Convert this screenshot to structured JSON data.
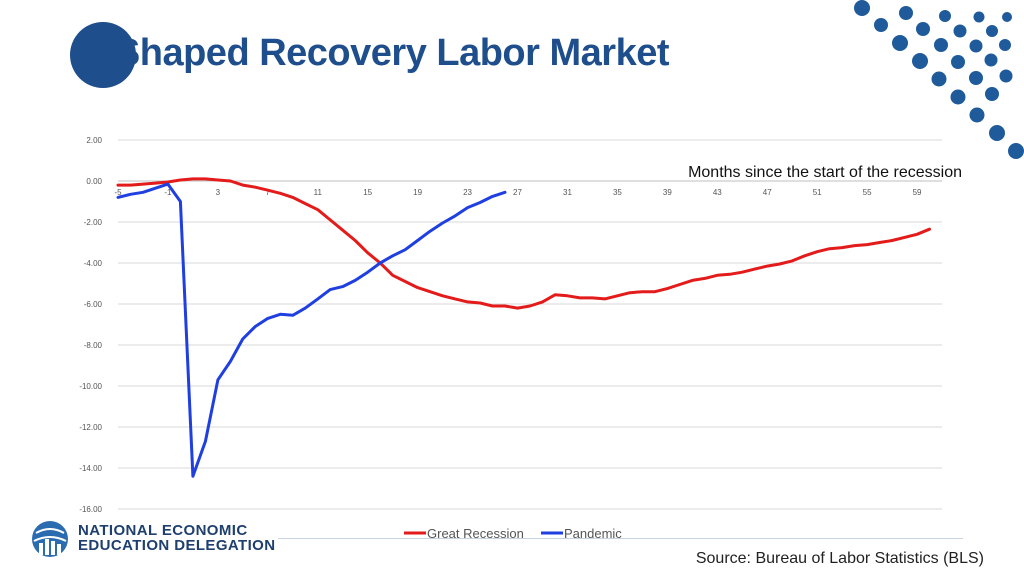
{
  "slide": {
    "title": "V-Shaped Recovery Labor Market",
    "logo": {
      "line1": "NATIONAL ECONOMIC",
      "line2": "EDUCATION DELEGATION"
    },
    "source": "Source: Bureau of Labor Statistics (BLS)",
    "colors": {
      "brand": "#1f4e8c",
      "dots": "#1f5a9a"
    }
  },
  "chart_data": {
    "type": "line",
    "title": "",
    "xlabel": "Months since the start of the recession",
    "ylabel": "",
    "xlim": [
      -5,
      61
    ],
    "ylim": [
      -16,
      2
    ],
    "x_ticks": [
      -5,
      -1,
      3,
      7,
      11,
      15,
      19,
      23,
      27,
      31,
      35,
      39,
      43,
      47,
      51,
      55,
      59
    ],
    "y_ticks": [
      "2.00",
      "0.00",
      "-2.00",
      "-4.00",
      "-6.00",
      "-8.00",
      "-10.00",
      "-12.00",
      "-14.00",
      "-16.00"
    ],
    "grid": true,
    "legend_position": "bottom",
    "series": [
      {
        "name": "Great Recession",
        "color": "#e31b1b",
        "x": [
          -5,
          -4,
          -3,
          -2,
          -1,
          0,
          1,
          2,
          3,
          4,
          5,
          6,
          7,
          8,
          9,
          10,
          11,
          12,
          13,
          14,
          15,
          16,
          17,
          18,
          19,
          20,
          21,
          22,
          23,
          24,
          25,
          26,
          27,
          28,
          29,
          30,
          31,
          32,
          33,
          34,
          35,
          36,
          37,
          38,
          39,
          40,
          41,
          42,
          43,
          44,
          45,
          46,
          47,
          48,
          49,
          50,
          51,
          52,
          53,
          54,
          55,
          56,
          57,
          58,
          59,
          60
        ],
        "values": [
          -0.2,
          -0.2,
          -0.15,
          -0.1,
          -0.05,
          0.05,
          0.1,
          0.1,
          0.05,
          0.0,
          -0.2,
          -0.3,
          -0.45,
          -0.6,
          -0.8,
          -1.1,
          -1.4,
          -1.9,
          -2.4,
          -2.9,
          -3.5,
          -4.0,
          -4.6,
          -4.9,
          -5.2,
          -5.4,
          -5.6,
          -5.75,
          -5.9,
          -5.95,
          -6.1,
          -6.1,
          -6.2,
          -6.1,
          -5.9,
          -5.55,
          -5.6,
          -5.7,
          -5.7,
          -5.75,
          -5.6,
          -5.45,
          -5.4,
          -5.4,
          -5.25,
          -5.05,
          -4.85,
          -4.75,
          -4.6,
          -4.55,
          -4.45,
          -4.3,
          -4.15,
          -4.05,
          -3.9,
          -3.65,
          -3.45,
          -3.3,
          -3.25,
          -3.15,
          -3.1,
          -3.0,
          -2.9,
          -2.75,
          -2.6,
          -2.35
        ]
      },
      {
        "name": "Pandemic",
        "color": "#1f3fe0",
        "x": [
          -5,
          -4,
          -3,
          -2,
          -1,
          0,
          1,
          2,
          3,
          4,
          5,
          6,
          7,
          8,
          9,
          10,
          11,
          12,
          13,
          14,
          15,
          16,
          17,
          18,
          19,
          20,
          21,
          22,
          23,
          24,
          25,
          26
        ],
        "values": [
          -0.8,
          -0.65,
          -0.55,
          -0.35,
          -0.15,
          -1.0,
          -14.4,
          -12.7,
          -9.7,
          -8.8,
          -7.7,
          -7.1,
          -6.7,
          -6.5,
          -6.55,
          -6.2,
          -5.75,
          -5.3,
          -5.15,
          -4.85,
          -4.45,
          -4.0,
          -3.65,
          -3.35,
          -2.9,
          -2.45,
          -2.05,
          -1.7,
          -1.3,
          -1.05,
          -0.75,
          -0.55
        ]
      }
    ]
  }
}
